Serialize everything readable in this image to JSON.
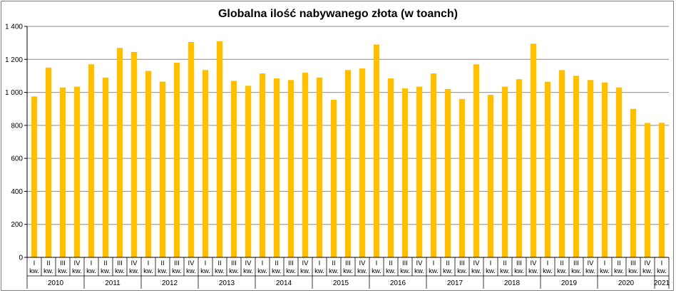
{
  "chart_data": {
    "type": "bar",
    "title": "Globalna ilość nabywanego złota (w toanch)",
    "xlabel": "",
    "ylabel": "",
    "ylim": [
      0,
      1400
    ],
    "yticks": [
      "0",
      "200",
      "400",
      "600",
      "800",
      "1 000",
      "1 200",
      "1 400"
    ],
    "ytick_values": [
      0,
      200,
      400,
      600,
      800,
      1000,
      1200,
      1400
    ],
    "grid": "horizontal",
    "bar_color": "#FFC000",
    "quarter_suffix": "kw.",
    "years": [
      {
        "label": "2010",
        "quarters": 4
      },
      {
        "label": "2011",
        "quarters": 4
      },
      {
        "label": "2012",
        "quarters": 4
      },
      {
        "label": "2013",
        "quarters": 4
      },
      {
        "label": "2014",
        "quarters": 4
      },
      {
        "label": "2015",
        "quarters": 4
      },
      {
        "label": "2016",
        "quarters": 4
      },
      {
        "label": "2017",
        "quarters": 4
      },
      {
        "label": "2018",
        "quarters": 4
      },
      {
        "label": "2019",
        "quarters": 4
      },
      {
        "label": "2020",
        "quarters": 4
      },
      {
        "label": "2021",
        "quarters": 1
      }
    ],
    "categories": [
      "I",
      "II",
      "III",
      "IV",
      "I",
      "II",
      "III",
      "IV",
      "I",
      "II",
      "III",
      "IV",
      "I",
      "II",
      "III",
      "IV",
      "I",
      "II",
      "III",
      "IV",
      "I",
      "II",
      "III",
      "IV",
      "I",
      "II",
      "III",
      "IV",
      "I",
      "II",
      "III",
      "IV",
      "I",
      "II",
      "III",
      "IV",
      "I",
      "II",
      "III",
      "IV",
      "I",
      "II",
      "III",
      "IV",
      "I"
    ],
    "values": [
      975,
      1150,
      1030,
      1035,
      1170,
      1090,
      1270,
      1245,
      1130,
      1065,
      1180,
      1305,
      1135,
      1310,
      1070,
      1040,
      1115,
      1085,
      1075,
      1120,
      1090,
      955,
      1135,
      1145,
      1290,
      1085,
      1025,
      1035,
      1115,
      1020,
      960,
      1170,
      985,
      1035,
      1080,
      1295,
      1065,
      1135,
      1100,
      1075,
      1060,
      1030,
      900,
      815,
      815
    ]
  }
}
